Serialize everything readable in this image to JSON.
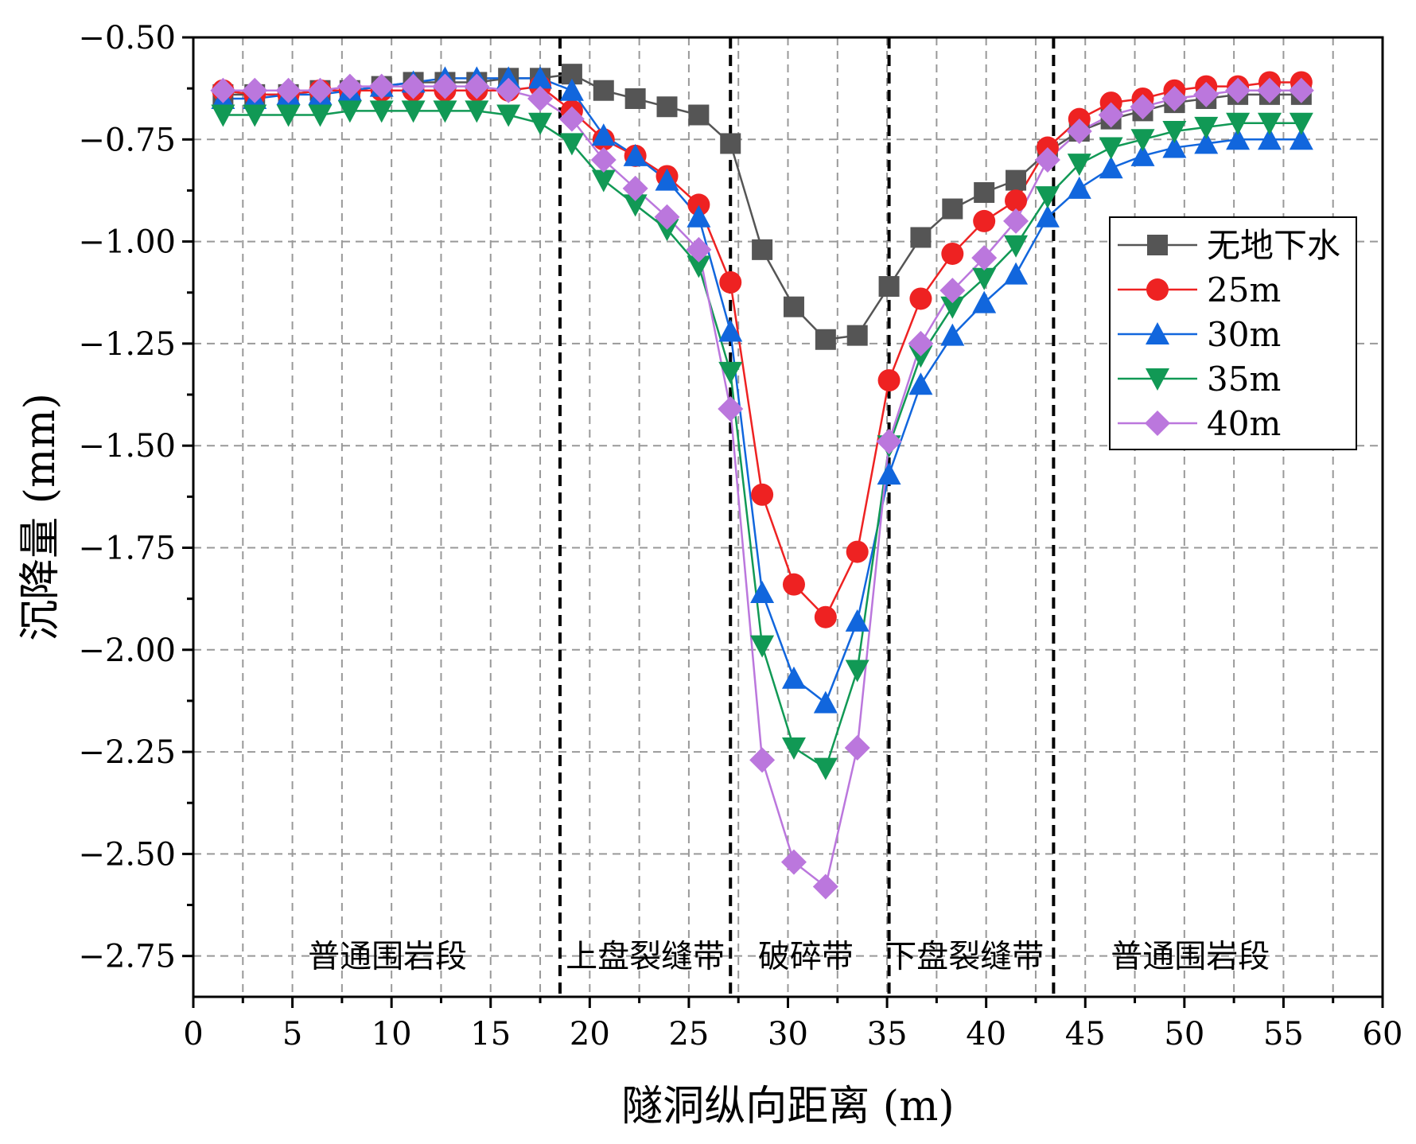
{
  "chart_data": {
    "type": "line",
    "title": "",
    "xlabel": "隧洞纵向距离 (m)",
    "ylabel": "沉降量 (mm)",
    "xlim": [
      0,
      60
    ],
    "ylim": [
      -2.85,
      -0.5
    ],
    "xticks": [
      0,
      5,
      10,
      15,
      20,
      25,
      30,
      35,
      40,
      45,
      50,
      55,
      60
    ],
    "xtick_labels": [
      "0",
      "5",
      "10",
      "15",
      "20",
      "25",
      "30",
      "35",
      "40",
      "45",
      "50",
      "55",
      "60"
    ],
    "yticks": [
      -0.5,
      -0.75,
      -1.0,
      -1.25,
      -1.5,
      -1.75,
      -2.0,
      -2.25,
      -2.5,
      -2.75
    ],
    "ytick_labels": [
      "−0.50",
      "−0.75",
      "−1.00",
      "−1.25",
      "−1.50",
      "−1.75",
      "−2.00",
      "−2.25",
      "−2.50",
      "−2.75"
    ],
    "grid": true,
    "legend_position": "right",
    "zone_boundaries": [
      18.5,
      27.1,
      35.1,
      43.4
    ],
    "zone_labels": [
      {
        "text": "普通围岩段",
        "x": 9.8,
        "y": -2.75
      },
      {
        "text": "上盘裂缝带",
        "x": 22.8,
        "y": -2.75
      },
      {
        "text": "破碎带",
        "x": 30.9,
        "y": -2.75
      },
      {
        "text": "下盘裂缝带",
        "x": 38.9,
        "y": -2.75
      },
      {
        "text": "普通围岩段",
        "x": 50.3,
        "y": -2.75
      }
    ],
    "x": [
      1.5,
      3.1,
      4.8,
      6.4,
      7.9,
      9.5,
      11.1,
      12.7,
      14.3,
      15.9,
      17.5,
      19.1,
      20.7,
      22.3,
      23.9,
      25.5,
      27.1,
      28.7,
      30.3,
      31.9,
      33.5,
      35.1,
      36.7,
      38.3,
      39.9,
      41.5,
      43.1,
      44.7,
      46.3,
      47.9,
      49.5,
      51.1,
      52.7,
      54.3,
      55.9
    ],
    "series": [
      {
        "name": "无地下水",
        "color": "#555555",
        "marker": "square",
        "values": [
          -0.64,
          -0.64,
          -0.64,
          -0.63,
          -0.63,
          -0.62,
          -0.61,
          -0.61,
          -0.61,
          -0.6,
          -0.6,
          -0.59,
          -0.63,
          -0.65,
          -0.67,
          -0.69,
          -0.76,
          -1.02,
          -1.16,
          -1.24,
          -1.23,
          -1.11,
          -0.99,
          -0.92,
          -0.88,
          -0.85,
          -0.78,
          -0.73,
          -0.7,
          -0.68,
          -0.66,
          -0.65,
          -0.64,
          -0.64,
          -0.64
        ]
      },
      {
        "name": "25m",
        "color": "#ee2222",
        "marker": "circle",
        "values": [
          -0.63,
          -0.64,
          -0.64,
          -0.63,
          -0.63,
          -0.63,
          -0.63,
          -0.63,
          -0.63,
          -0.63,
          -0.62,
          -0.68,
          -0.75,
          -0.79,
          -0.84,
          -0.91,
          -1.1,
          -1.62,
          -1.84,
          -1.92,
          -1.76,
          -1.34,
          -1.14,
          -1.03,
          -0.95,
          -0.9,
          -0.77,
          -0.7,
          -0.66,
          -0.65,
          -0.63,
          -0.62,
          -0.62,
          -0.61,
          -0.61
        ]
      },
      {
        "name": "30m",
        "color": "#1166dd",
        "marker": "triangle-up",
        "values": [
          -0.65,
          -0.65,
          -0.64,
          -0.64,
          -0.63,
          -0.62,
          -0.61,
          -0.6,
          -0.6,
          -0.6,
          -0.6,
          -0.63,
          -0.74,
          -0.79,
          -0.85,
          -0.94,
          -1.22,
          -1.86,
          -2.07,
          -2.13,
          -1.93,
          -1.57,
          -1.35,
          -1.23,
          -1.15,
          -1.08,
          -0.94,
          -0.87,
          -0.82,
          -0.79,
          -0.77,
          -0.76,
          -0.75,
          -0.75,
          -0.75
        ]
      },
      {
        "name": "35m",
        "color": "#119955",
        "marker": "triangle-down",
        "values": [
          -0.69,
          -0.69,
          -0.69,
          -0.69,
          -0.68,
          -0.68,
          -0.68,
          -0.68,
          -0.68,
          -0.69,
          -0.71,
          -0.76,
          -0.85,
          -0.91,
          -0.97,
          -1.06,
          -1.32,
          -1.99,
          -2.24,
          -2.29,
          -2.05,
          -1.5,
          -1.28,
          -1.16,
          -1.09,
          -1.01,
          -0.89,
          -0.81,
          -0.77,
          -0.75,
          -0.73,
          -0.72,
          -0.71,
          -0.71,
          -0.71
        ]
      },
      {
        "name": "40m",
        "color": "#bb77dd",
        "marker": "diamond",
        "values": [
          -0.63,
          -0.63,
          -0.63,
          -0.63,
          -0.62,
          -0.62,
          -0.62,
          -0.62,
          -0.62,
          -0.63,
          -0.65,
          -0.7,
          -0.8,
          -0.87,
          -0.94,
          -1.02,
          -1.41,
          -2.27,
          -2.52,
          -2.58,
          -2.24,
          -1.49,
          -1.25,
          -1.12,
          -1.04,
          -0.95,
          -0.8,
          -0.73,
          -0.69,
          -0.67,
          -0.65,
          -0.64,
          -0.63,
          -0.63,
          -0.63
        ]
      }
    ]
  }
}
